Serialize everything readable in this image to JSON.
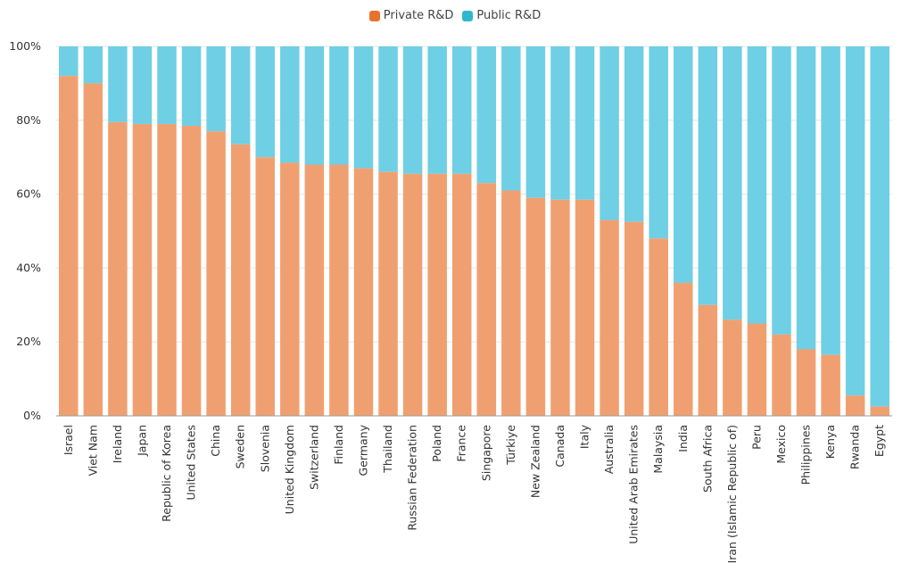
{
  "colors": {
    "private": "#F0A070",
    "public": "#6FCFE4",
    "private_legend": "#E8722C",
    "public_legend": "#2FB7CF",
    "grid": "#e6e6e6",
    "axis": "#999999"
  },
  "legend": [
    {
      "label": "Private R&D",
      "color_key": "private_legend"
    },
    {
      "label": "Public R&D",
      "color_key": "public_legend"
    }
  ],
  "chart_data": {
    "type": "bar",
    "stacked": true,
    "title": "",
    "xlabel": "",
    "ylabel": "",
    "ylim": [
      0,
      100
    ],
    "yticks": [
      "0%",
      "20%",
      "40%",
      "60%",
      "80%",
      "100%"
    ],
    "legend_position": "top-center",
    "categories": [
      "Israel",
      "Viet Nam",
      "Ireland",
      "Japan",
      "Republic of Korea",
      "United States",
      "China",
      "Sweden",
      "Slovenia",
      "United Kingdom",
      "Switzerland",
      "Finland",
      "Germany",
      "Thailand",
      "Russian Federation",
      "Poland",
      "France",
      "Singapore",
      "Türkiye",
      "New Zealand",
      "Canada",
      "Italy",
      "Australia",
      "United Arab Emirates",
      "Malaysia",
      "India",
      "South Africa",
      "Iran (Islamic Republic of)",
      "Peru",
      "Mexico",
      "Philippines",
      "Kenya",
      "Rwanda",
      "Egypt"
    ],
    "series": [
      {
        "name": "Private R&D",
        "values": [
          92,
          90,
          79.5,
          79,
          79,
          78.5,
          77,
          73.5,
          70,
          68.5,
          68,
          68,
          67,
          66,
          65.5,
          65.5,
          65.5,
          63,
          61,
          59,
          58.5,
          58.5,
          53,
          52.5,
          48,
          36,
          30,
          26,
          25,
          22,
          18,
          16.5,
          5.5,
          2.5
        ]
      },
      {
        "name": "Public R&D",
        "values": [
          8,
          10,
          20.5,
          21,
          21,
          21.5,
          23,
          26.5,
          30,
          31.5,
          32,
          32,
          33,
          34,
          34.5,
          34.5,
          34.5,
          37,
          39,
          41,
          41.5,
          41.5,
          47,
          47.5,
          52,
          64,
          70,
          74,
          75,
          78,
          82,
          83.5,
          94.5,
          97.5
        ]
      }
    ]
  }
}
